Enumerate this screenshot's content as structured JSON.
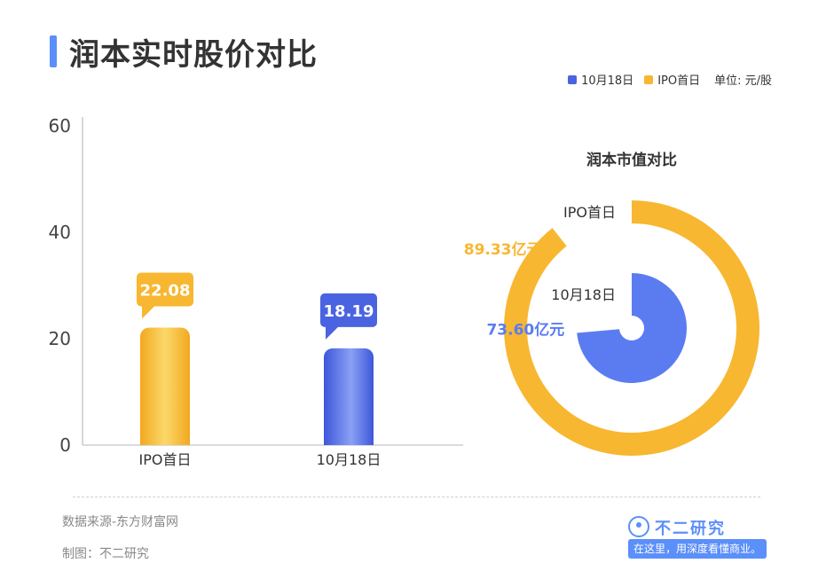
{
  "title": "润本实时股价对比",
  "legend": {
    "items": [
      {
        "label": "10月18日",
        "color": "#4a63e0"
      },
      {
        "label": "IPO首日",
        "color": "#f7b731"
      }
    ],
    "unit": "单位: 元/股"
  },
  "chart_data": [
    {
      "type": "bar",
      "categories": [
        "IPO首日",
        "10月18日"
      ],
      "values": [
        22.08,
        18.19
      ],
      "colors": [
        "#f7b731",
        "#4a63e0"
      ],
      "ylim": [
        0,
        60
      ],
      "yticks": [
        0,
        20,
        40,
        60
      ],
      "data_labels": [
        "22.08",
        "18.19"
      ],
      "title": "",
      "xlabel": "",
      "ylabel": ""
    },
    {
      "type": "pie",
      "style": "radial-semi-donut",
      "title": "润本市值对比",
      "series": [
        {
          "name": "IPO首日",
          "value": 89.33,
          "label": "89.33亿元",
          "color": "#f7b731"
        },
        {
          "name": "10月18日",
          "value": 73.6,
          "label": "73.60亿元",
          "color": "#5b7cf0"
        }
      ]
    }
  ],
  "footer": {
    "source": "数据来源-东方财富网",
    "maker": "制图：不二研究"
  },
  "brand": {
    "name": "不二研究",
    "slogan": "在这里，用深度看懂商业。"
  }
}
